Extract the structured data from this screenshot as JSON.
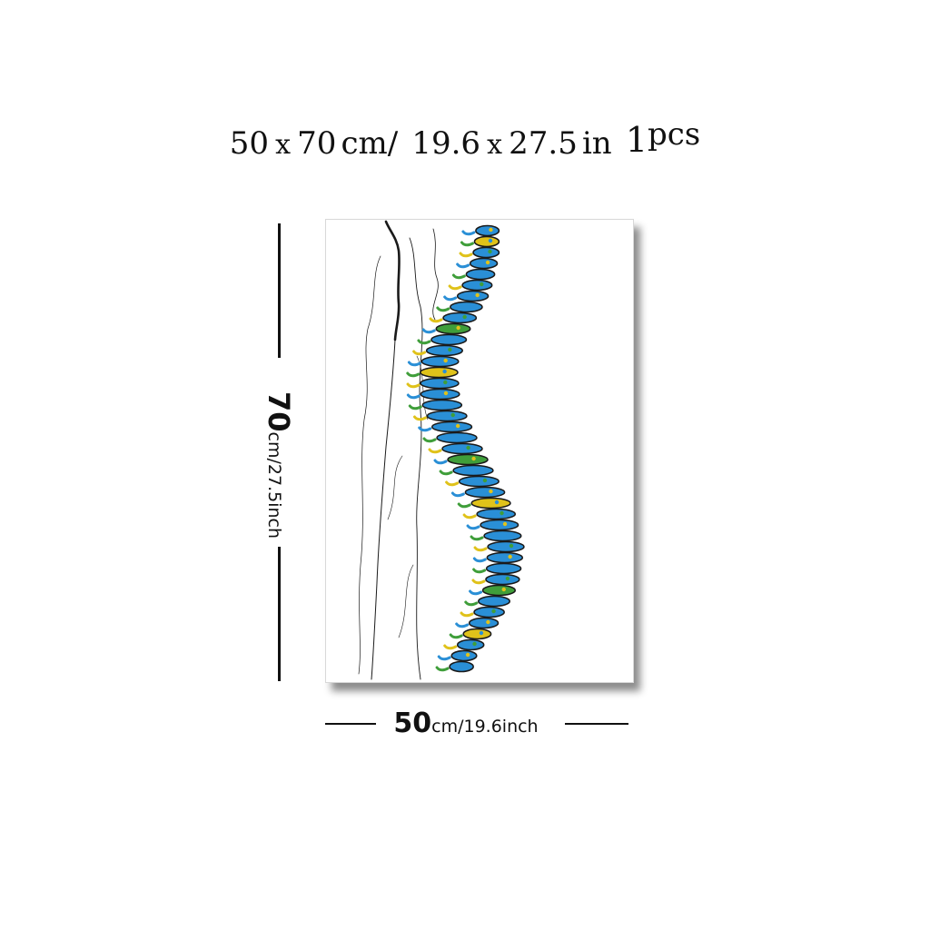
{
  "title": {
    "width_num": "50",
    "x1": "x",
    "height_num": "70",
    "unit_cm": "cm",
    "sep": "/",
    "width_in": "19.6",
    "x2": "x",
    "height_in": "27.5",
    "unit_in": "in",
    "qty": "1",
    "pcs": "pcs"
  },
  "height_dim": {
    "number": "70",
    "unit": "cm/27.5inch"
  },
  "width_dim": {
    "number": "50",
    "unit": "cm/19.6inch"
  },
  "colors": {
    "text": "#111111",
    "vertebra_blue": "#2a8fd6",
    "vertebra_green": "#3f9e3a",
    "vertebra_yellow": "#e0c21a",
    "nerve_black": "#1a1a1a"
  }
}
